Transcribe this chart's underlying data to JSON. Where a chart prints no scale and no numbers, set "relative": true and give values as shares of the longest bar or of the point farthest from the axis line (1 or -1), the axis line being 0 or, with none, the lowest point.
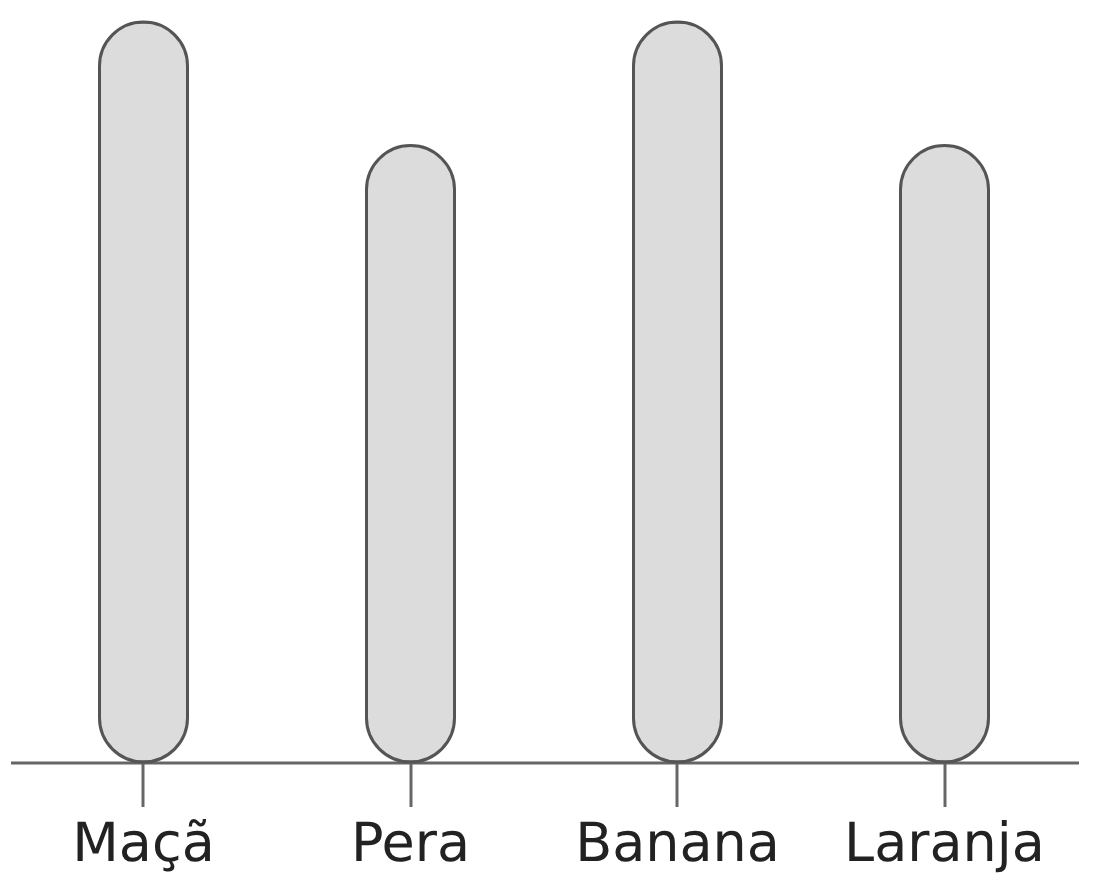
{
  "chart_data": {
    "type": "bar",
    "relative": true,
    "categories": [
      "Maçã",
      "Pera",
      "Banana",
      "Laranja"
    ],
    "values": [
      1,
      0.833,
      1,
      0.833
    ],
    "color": "#dcdcdc"
  }
}
